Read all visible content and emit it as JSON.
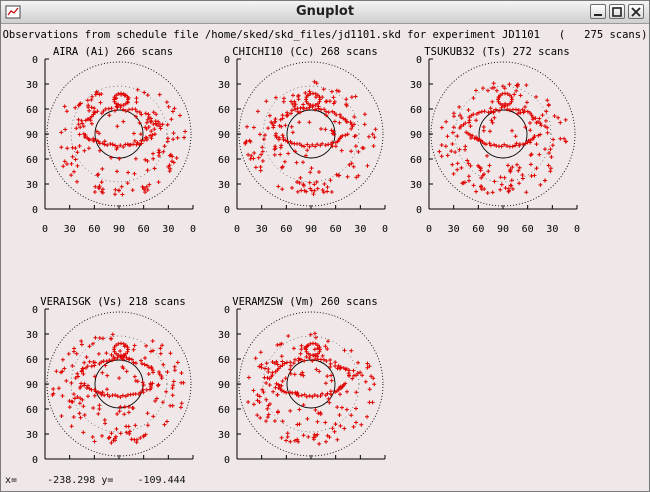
{
  "window": {
    "title": "Gnuplot"
  },
  "plot": {
    "header": "Observations from schedule file /home/sked/skd_files/jd1101.skd for experiment JD1101   (   275 scans)",
    "mark_color": "#e00000",
    "panels": [
      {
        "label": "AIRA (Ai)  266 scans"
      },
      {
        "label": "CHICHI10 (Cc)  268 scans"
      },
      {
        "label": "TSUKUB32 (Ts)  272 scans"
      },
      {
        "label": "VERAISGK (Vs)  218 scans"
      },
      {
        "label": "VERAMZSW (Vm)  260 scans"
      }
    ],
    "y_ticks": [
      "0",
      "30",
      "60",
      "90",
      "60",
      "30",
      "0"
    ],
    "x_ticks": [
      "0",
      "30",
      "60",
      "90",
      "60",
      "30",
      "0"
    ]
  },
  "status": {
    "x_label": "x=",
    "x_value": "-238.298",
    "y_label": "y=",
    "y_value": "-109.444"
  }
}
